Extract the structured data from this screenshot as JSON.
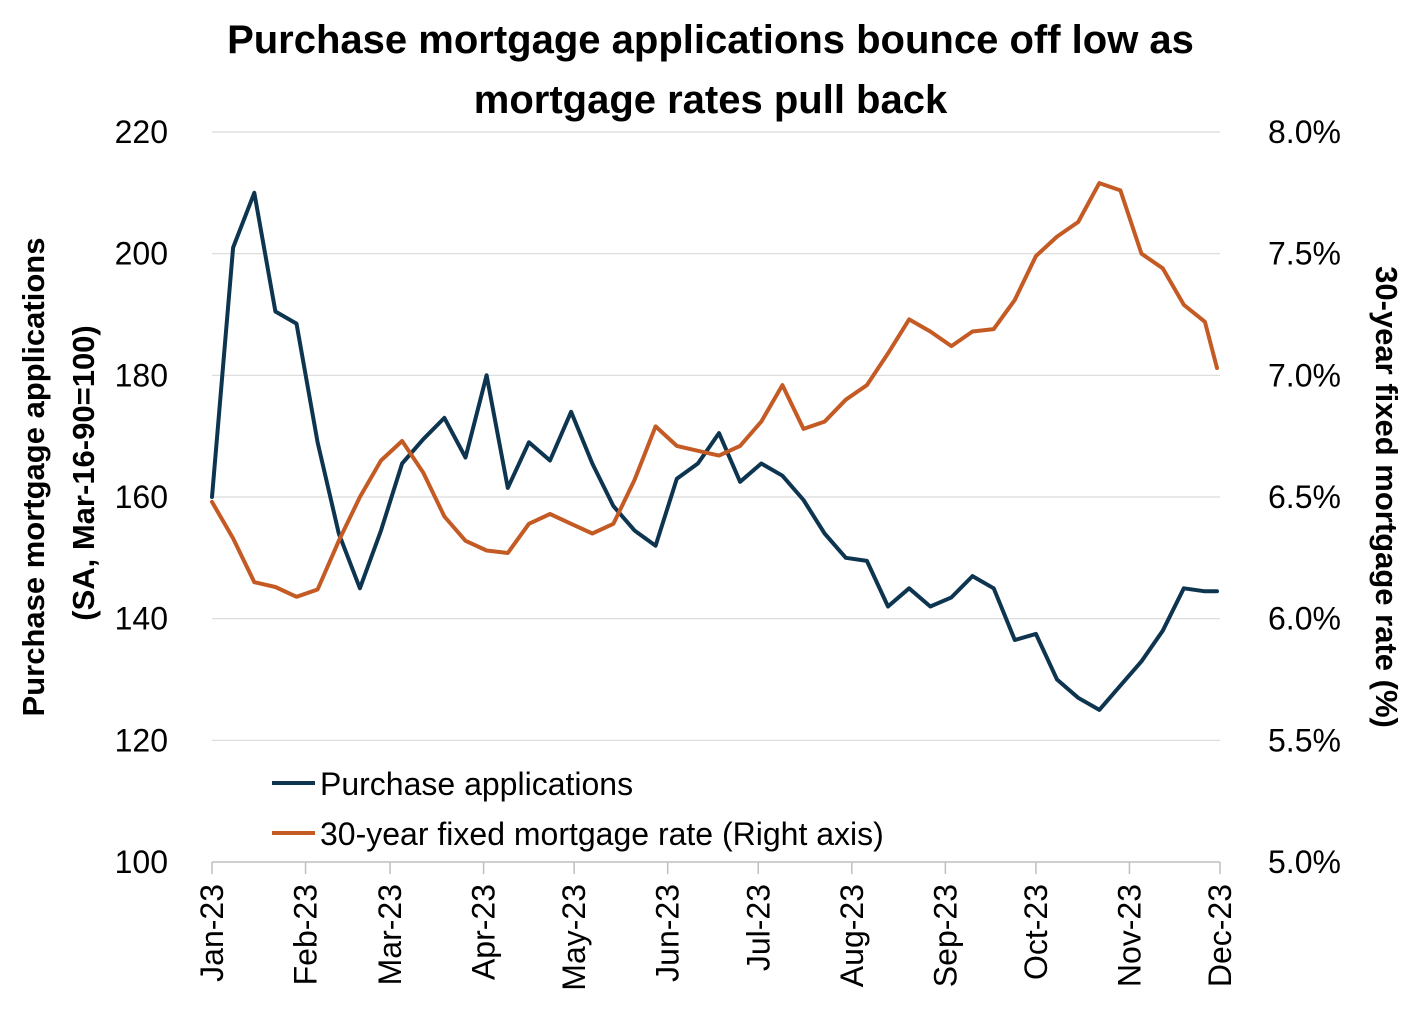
{
  "title_line1": "Purchase mortgage applications bounce off low as",
  "title_line2": "mortgage rates pull back",
  "chart_data": {
    "type": "line",
    "title": "Purchase mortgage applications bounce off low as mortgage rates pull back",
    "ylabel_left_line1": "Purchase mortgage applications",
    "ylabel_left_line2": "(SA, Mar-16-90=100)",
    "ylabel_right": "30-year fixed mortgage rate (%)",
    "ylim_left": [
      100,
      220
    ],
    "yticks_left": [
      "100",
      "120",
      "140",
      "160",
      "180",
      "200",
      "220"
    ],
    "ylim_right": [
      5.0,
      8.0
    ],
    "yticks_right": [
      "5.0%",
      "5.5%",
      "6.0%",
      "6.5%",
      "7.0%",
      "7.5%",
      "8.0%"
    ],
    "xlim_days": [
      0,
      334
    ],
    "x_ticks": [
      {
        "label": "Jan-23",
        "day": 0
      },
      {
        "label": "Feb-23",
        "day": 31
      },
      {
        "label": "Mar-23",
        "day": 59
      },
      {
        "label": "Apr-23",
        "day": 90
      },
      {
        "label": "May-23",
        "day": 120
      },
      {
        "label": "Jun-23",
        "day": 151
      },
      {
        "label": "Jul-23",
        "day": 181
      },
      {
        "label": "Aug-23",
        "day": 212
      },
      {
        "label": "Sep-23",
        "day": 243
      },
      {
        "label": "Oct-23",
        "day": 273
      },
      {
        "label": "Nov-23",
        "day": 304
      },
      {
        "label": "Dec-23",
        "day": 334
      }
    ],
    "grid": true,
    "legend_position": "bottom-left",
    "series": [
      {
        "name": "Purchase applications",
        "axis": "left",
        "color": "#0d3550",
        "x_days": [
          0,
          7,
          14,
          21,
          28,
          35,
          42,
          49,
          56,
          63,
          70,
          77,
          84,
          91,
          98,
          105,
          112,
          119,
          126,
          133,
          140,
          147,
          154,
          161,
          168,
          175,
          182,
          189,
          196,
          203,
          210,
          217,
          224,
          231,
          238,
          245,
          252,
          259,
          266,
          273,
          280,
          287,
          294,
          301,
          308,
          315,
          322,
          329,
          333
        ],
        "values": [
          160.0,
          201.0,
          210.0,
          190.5,
          188.5,
          169.0,
          154.0,
          145.0,
          154.5,
          165.5,
          169.5,
          173.0,
          166.5,
          180.0,
          161.5,
          169.0,
          166.0,
          174.0,
          165.5,
          158.5,
          154.5,
          152.0,
          163.0,
          165.5,
          170.5,
          162.5,
          165.5,
          163.5,
          159.5,
          154.0,
          150.0,
          149.5,
          142.0,
          145.0,
          142.0,
          143.5,
          147.0,
          145.0,
          136.5,
          137.5,
          130.0,
          127.0,
          125.0,
          129.0,
          133.0,
          138.0,
          145.0,
          144.5,
          144.5
        ]
      },
      {
        "name": "30-year fixed mortgage rate (Right axis)",
        "axis": "right",
        "color": "#c45a24",
        "x_days": [
          0,
          7,
          14,
          21,
          28,
          35,
          42,
          49,
          56,
          63,
          70,
          77,
          84,
          91,
          98,
          105,
          112,
          119,
          126,
          133,
          140,
          147,
          154,
          161,
          168,
          175,
          182,
          189,
          196,
          203,
          210,
          217,
          224,
          231,
          238,
          245,
          252,
          259,
          266,
          273,
          280,
          287,
          294,
          301,
          308,
          315,
          322,
          329,
          333
        ],
        "values": [
          6.48,
          6.33,
          6.15,
          6.13,
          6.09,
          6.12,
          6.32,
          6.5,
          6.65,
          6.73,
          6.6,
          6.42,
          6.32,
          6.28,
          6.27,
          6.39,
          6.43,
          6.39,
          6.35,
          6.39,
          6.57,
          6.79,
          6.71,
          6.69,
          6.67,
          6.71,
          6.81,
          6.96,
          6.78,
          6.81,
          6.9,
          6.96,
          7.09,
          7.23,
          7.18,
          7.12,
          7.18,
          7.19,
          7.31,
          7.49,
          7.57,
          7.63,
          7.79,
          7.76,
          7.5,
          7.44,
          7.29,
          7.22,
          7.03
        ]
      }
    ]
  }
}
